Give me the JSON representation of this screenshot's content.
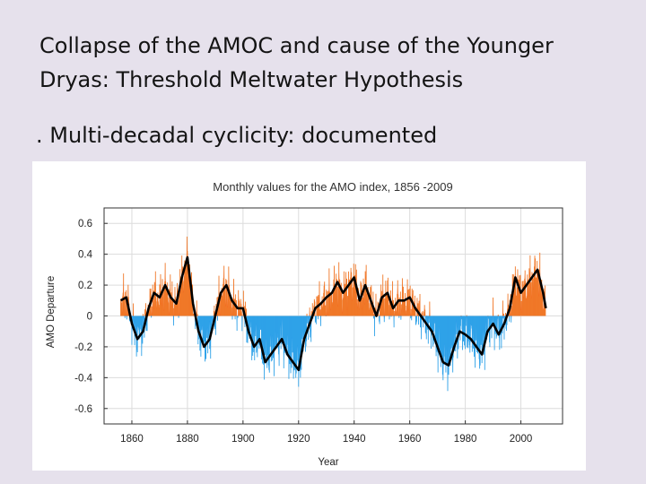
{
  "slide": {
    "title_line1": "Collapse of the AMOC and cause of the Younger",
    "title_line2": "Dryas: Threshold Meltwater Hypothesis",
    "bullet": ". Multi-decadal cyclicity: documented"
  },
  "chart_data": {
    "type": "area",
    "title": "Monthly values for the AMO index, 1856 -2009",
    "xlabel": "Year",
    "ylabel": "AMO Departure",
    "xlim": [
      1850,
      2015
    ],
    "ylim": [
      -0.7,
      0.7
    ],
    "xticks": [
      1860,
      1880,
      1900,
      1920,
      1940,
      1960,
      1980,
      2000
    ],
    "yticks": [
      0.6,
      0.4,
      0.2,
      0,
      -0.2,
      -0.4,
      -0.6
    ],
    "ytick_labels": [
      "0.6",
      "0.4",
      "0.2",
      "0",
      "-0.2",
      "-0.4",
      "-0.6"
    ],
    "grid": true,
    "colors": {
      "positive": "#ff3c00",
      "negative": "#1e8cf0",
      "monthly_positive": "#f07828",
      "monthly_negative": "#2fa2e8",
      "smoothed": "#000000"
    },
    "smoothed": {
      "x": [
        1856,
        1858,
        1860,
        1862,
        1864,
        1866,
        1868,
        1870,
        1872,
        1874,
        1876,
        1878,
        1880,
        1882,
        1884,
        1886,
        1888,
        1890,
        1892,
        1894,
        1896,
        1898,
        1900,
        1902,
        1904,
        1906,
        1908,
        1910,
        1912,
        1914,
        1916,
        1918,
        1920,
        1922,
        1924,
        1926,
        1928,
        1930,
        1932,
        1934,
        1936,
        1938,
        1940,
        1942,
        1944,
        1946,
        1948,
        1950,
        1952,
        1954,
        1956,
        1958,
        1960,
        1962,
        1964,
        1966,
        1968,
        1970,
        1972,
        1974,
        1976,
        1978,
        1980,
        1982,
        1984,
        1986,
        1988,
        1990,
        1992,
        1994,
        1996,
        1998,
        2000,
        2002,
        2004,
        2006,
        2008,
        2009
      ],
      "y": [
        0.1,
        0.12,
        -0.05,
        -0.15,
        -0.1,
        0.05,
        0.15,
        0.12,
        0.2,
        0.12,
        0.08,
        0.25,
        0.38,
        0.08,
        -0.1,
        -0.2,
        -0.15,
        0.0,
        0.15,
        0.2,
        0.1,
        0.05,
        0.05,
        -0.1,
        -0.2,
        -0.15,
        -0.3,
        -0.25,
        -0.2,
        -0.15,
        -0.25,
        -0.3,
        -0.35,
        -0.15,
        -0.05,
        0.05,
        0.08,
        0.12,
        0.15,
        0.22,
        0.15,
        0.2,
        0.25,
        0.1,
        0.2,
        0.1,
        0.0,
        0.12,
        0.15,
        0.05,
        0.1,
        0.1,
        0.12,
        0.05,
        0.0,
        -0.05,
        -0.1,
        -0.2,
        -0.3,
        -0.32,
        -0.2,
        -0.1,
        -0.12,
        -0.15,
        -0.2,
        -0.25,
        -0.1,
        -0.05,
        -0.12,
        -0.05,
        0.05,
        0.25,
        0.15,
        0.2,
        0.25,
        0.3,
        0.15,
        0.05
      ]
    }
  }
}
